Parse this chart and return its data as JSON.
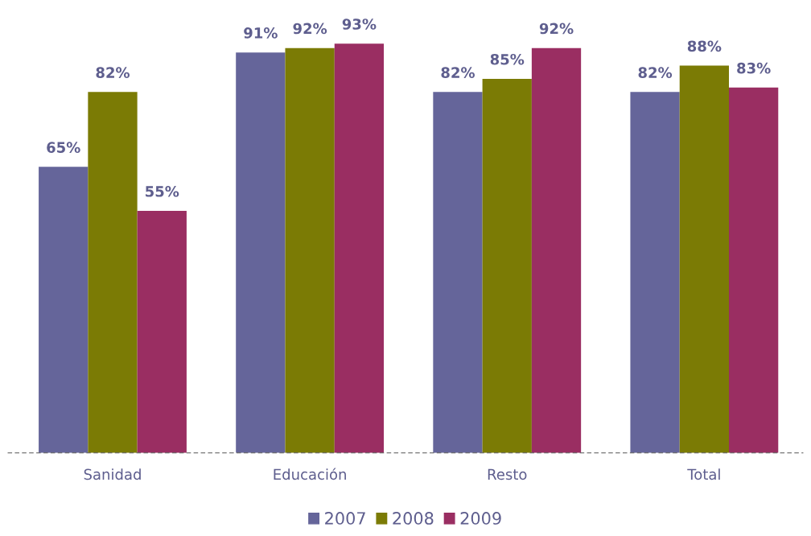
{
  "chart_data": {
    "type": "bar",
    "categories": [
      "Sanidad",
      "Educación",
      "Resto",
      "Total"
    ],
    "series": [
      {
        "name": "2007",
        "color": "#65659a",
        "values": [
          65,
          91,
          82,
          82
        ],
        "value_labels": [
          "65%",
          "91%",
          "82%",
          "82%"
        ]
      },
      {
        "name": "2008",
        "color": "#7b7b05",
        "values": [
          82,
          92,
          85,
          88
        ],
        "value_labels": [
          "82%",
          "92%",
          "85%",
          "88%"
        ]
      },
      {
        "name": "2009",
        "color": "#9a2e62",
        "values": [
          55,
          93,
          92,
          83
        ],
        "value_labels": [
          "55%",
          "93%",
          "92%",
          "83%"
        ]
      }
    ],
    "legend": "bottom",
    "grid": false
  }
}
